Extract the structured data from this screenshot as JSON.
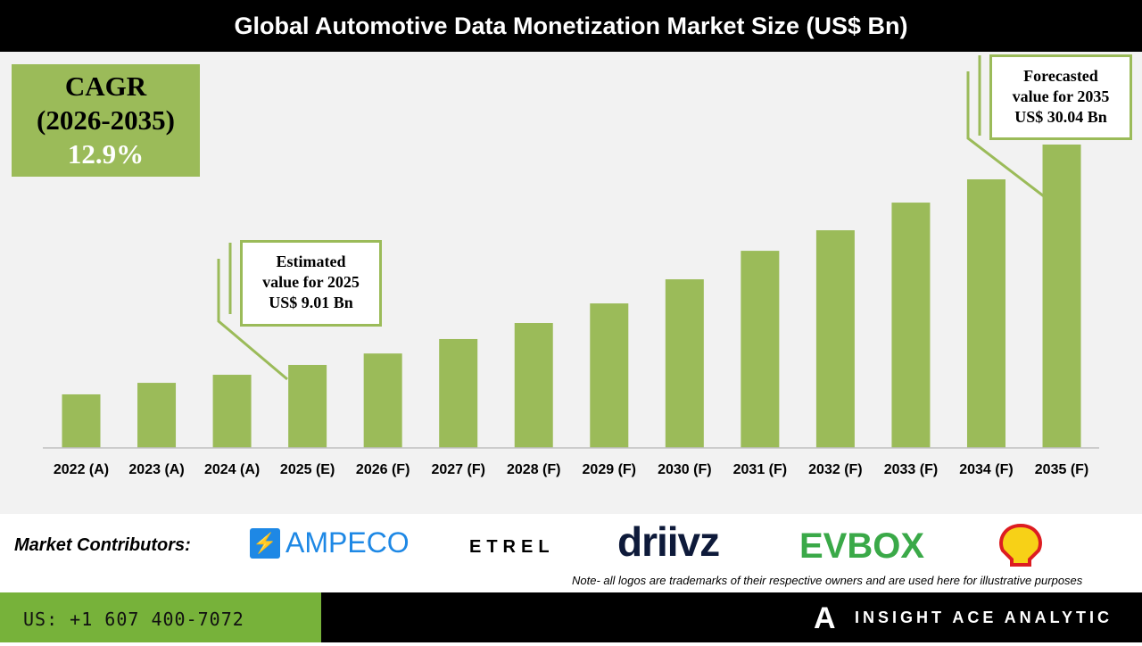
{
  "title": "Global Automotive Data Monetization Market Size (US$ Bn)",
  "cagr": {
    "label": "CAGR",
    "period": "(2026-2035)",
    "value": "12.9%"
  },
  "callouts": {
    "estimated": [
      "Estimated",
      "value for 2025",
      "US$ 9.01 Bn"
    ],
    "forecasted": [
      "Forecasted",
      "value for 2035",
      "US$ 30.04 Bn"
    ]
  },
  "chart_data": {
    "type": "bar",
    "title": "Global Automotive Data Monetization Market Size (US$ Bn)",
    "categories": [
      "2022 (A)",
      "2023 (A)",
      "2024 (A)",
      "2025 (E)",
      "2026 (F)",
      "2027 (F)",
      "2028 (F)",
      "2029 (F)",
      "2030 (F)",
      "2031 (F)",
      "2032 (F)",
      "2033 (F)",
      "2034 (F)",
      "2035 (F)"
    ],
    "values": [
      6.2,
      7.3,
      8.07,
      9.01,
      10.1,
      11.48,
      13.01,
      14.88,
      17.18,
      19.9,
      21.86,
      24.5,
      26.72,
      30.04
    ],
    "ylim": [
      1.09,
      36
    ],
    "grid": false,
    "bar_color": "#9bbb59"
  },
  "footer": {
    "contributors_label": "Market Contributors:",
    "logos": [
      "AMPECO",
      "ETREL",
      "driivz",
      "EVBOX",
      "Shell"
    ],
    "note": "Note- all logos are trademarks of their respective owners and are used here for illustrative purposes",
    "phone": "US: +1 607 400-7072",
    "brand": "INSIGHT ACE ANALYTIC"
  }
}
